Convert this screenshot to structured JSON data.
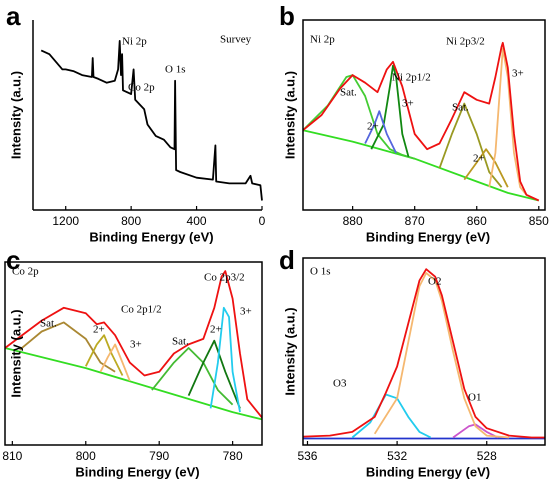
{
  "chart_data": [
    {
      "type": "line",
      "label": "a",
      "x_label": "Binding Energy (eV)",
      "y_label": "Intensity (a.u.)",
      "xlim": [
        1400,
        0
      ],
      "xticks": [
        1200,
        800,
        400,
        0
      ],
      "ylim": [
        0,
        100
      ],
      "annotations": [
        "Ni 2p",
        "Co 2p",
        "O 1s",
        "Survey"
      ],
      "series": [
        {
          "color": "#000000",
          "x": [
            1350,
            1300,
            1220,
            1200,
            1150,
            1100,
            1040,
            1035,
            1030,
            1000,
            950,
            900,
            880,
            870,
            862,
            855,
            850,
            800,
            785,
            775,
            720,
            700,
            650,
            600,
            560,
            535,
            531,
            525,
            500,
            400,
            300,
            285,
            280,
            200,
            100,
            70,
            60,
            10,
            0
          ],
          "values": [
            84,
            82,
            74,
            74,
            73,
            71,
            70,
            80,
            70,
            69,
            67,
            68,
            74,
            89,
            71,
            82,
            63,
            61,
            74,
            58,
            53,
            45,
            39,
            37,
            33,
            32,
            68,
            21,
            20,
            17,
            16,
            34,
            15,
            14,
            14,
            18,
            14,
            13,
            5
          ]
        }
      ]
    },
    {
      "type": "line",
      "label": "b",
      "x_label": "Binding Energy (eV)",
      "y_label": "Intensity (a.u.)",
      "xlim": [
        888,
        849
      ],
      "xticks": [
        880,
        870,
        860,
        850
      ],
      "ylim": [
        0,
        100
      ],
      "annotations": [
        "Ni 2p",
        "Sat.",
        "Ni 2p1/2",
        "3+",
        "2+",
        "Sat.",
        "Ni 2p3/2",
        "3+",
        "2+"
      ],
      "series": [
        {
          "color": "#33dd22",
          "x": [
            888,
            880,
            870,
            860,
            855,
            850
          ],
          "values": [
            42,
            36,
            27,
            15,
            9,
            5
          ]
        },
        {
          "color": "#44cc33",
          "x": [
            888,
            884,
            881,
            880,
            878,
            876,
            874,
            872,
            870
          ],
          "values": [
            42,
            55,
            70,
            71,
            60,
            40,
            32,
            29,
            27
          ]
        },
        {
          "color": "#118811",
          "x": [
            877,
            875,
            874,
            873.5,
            873,
            872,
            871
          ],
          "values": [
            32,
            45,
            65,
            76,
            70,
            40,
            28
          ]
        },
        {
          "color": "#5566dd",
          "x": [
            878,
            876.5,
            875.7,
            874.5,
            873
          ],
          "values": [
            35,
            45,
            52,
            40,
            30
          ]
        },
        {
          "color": "#999922",
          "x": [
            866,
            864,
            862,
            860,
            858,
            856
          ],
          "values": [
            22,
            40,
            56,
            40,
            20,
            12
          ]
        },
        {
          "color": "#bb9922",
          "x": [
            862,
            860,
            858.5,
            857,
            855
          ],
          "values": [
            16,
            25,
            32,
            25,
            12
          ]
        },
        {
          "color": "#f5b870",
          "x": [
            858,
            857,
            856,
            855.8,
            855,
            854,
            853,
            852
          ],
          "values": [
            12,
            30,
            76,
            85,
            70,
            30,
            12,
            8
          ]
        },
        {
          "color": "#ee1111",
          "x": [
            888,
            885,
            882,
            880,
            878,
            876,
            874.5,
            873.5,
            872,
            870,
            868,
            866,
            864,
            862,
            860,
            858,
            857,
            856,
            855.8,
            855,
            854,
            853,
            852,
            850
          ],
          "values": [
            42,
            50,
            64,
            71,
            67,
            62,
            74,
            78,
            65,
            40,
            32,
            35,
            48,
            62,
            58,
            56,
            70,
            86,
            88,
            75,
            40,
            15,
            8,
            5
          ]
        }
      ]
    },
    {
      "type": "line",
      "label": "c",
      "x_label": "Binding Energy (eV)",
      "y_label": "Intensity (a.u.)",
      "xlim": [
        811,
        776
      ],
      "xticks": [
        810,
        800,
        790,
        780
      ],
      "ylim": [
        0,
        100
      ],
      "annotations": [
        "Co 2p",
        "Sat.",
        "2+",
        "Co 2p1/2",
        "3+",
        "Co 2p3/2",
        "Sat.",
        "2+",
        "3+"
      ],
      "series": [
        {
          "color": "#33dd22",
          "x": [
            811,
            800,
            790,
            780,
            776
          ],
          "values": [
            53,
            42,
            30,
            18,
            14
          ]
        },
        {
          "color": "#aa8833",
          "x": [
            809,
            806,
            803,
            800,
            798,
            796
          ],
          "values": [
            52,
            62,
            67,
            58,
            45,
            40
          ]
        },
        {
          "color": "#bbaa22",
          "x": [
            800,
            798.5,
            797.5,
            796.5,
            795
          ],
          "values": [
            43,
            55,
            60,
            50,
            38
          ]
        },
        {
          "color": "#f5b870",
          "x": [
            798,
            797,
            796,
            795,
            794
          ],
          "values": [
            40,
            48,
            55,
            45,
            35
          ]
        },
        {
          "color": "#44bb33",
          "x": [
            791,
            788,
            786,
            784,
            782,
            780
          ],
          "values": [
            30,
            45,
            53,
            45,
            30,
            22
          ]
        },
        {
          "color": "#117711",
          "x": [
            786,
            784,
            782.5,
            781,
            779
          ],
          "values": [
            27,
            45,
            57,
            40,
            20
          ]
        },
        {
          "color": "#22ccee",
          "x": [
            783,
            782,
            781.2,
            780.5,
            780,
            779
          ],
          "values": [
            20,
            45,
            75,
            70,
            40,
            18
          ]
        },
        {
          "color": "#ee1111",
          "x": [
            811,
            806,
            803,
            800,
            798.5,
            797.5,
            796,
            794,
            792,
            790,
            788,
            786,
            784,
            782.5,
            781.5,
            781,
            780,
            779,
            778,
            776
          ],
          "values": [
            53,
            68,
            75,
            72,
            66,
            67,
            60,
            45,
            38,
            40,
            50,
            55,
            58,
            75,
            92,
            95,
            80,
            50,
            25,
            15
          ]
        }
      ]
    },
    {
      "type": "line",
      "label": "d",
      "x_label": "Binding Energy (eV)",
      "y_label": "Intensity (a.u.)",
      "xlim": [
        536.2,
        525.4
      ],
      "xticks": [
        536,
        532,
        528
      ],
      "ylim": [
        0,
        100
      ],
      "annotations": [
        "O 1s",
        "O2",
        "O3",
        "O1"
      ],
      "series": [
        {
          "color": "#2233cc",
          "x": [
            536.2,
            525.4
          ],
          "values": [
            3.5,
            3.5
          ]
        },
        {
          "color": "#22ccee",
          "x": [
            534,
            533.2,
            532.5,
            532,
            531.5,
            531,
            530.5
          ],
          "values": [
            4,
            12,
            27,
            25,
            15,
            7,
            4
          ]
        },
        {
          "color": "#cc55cc",
          "x": [
            529.5,
            528.8,
            528.5,
            528,
            527.5
          ],
          "values": [
            4,
            10,
            11,
            7,
            4
          ]
        },
        {
          "color": "#f5b870",
          "x": [
            533,
            532,
            531.5,
            531,
            530.7,
            530.3,
            530,
            529.5,
            529,
            528.5,
            528,
            527
          ],
          "values": [
            6,
            25,
            55,
            85,
            92,
            88,
            77,
            50,
            25,
            10,
            5,
            4
          ]
        },
        {
          "color": "#ee1111",
          "x": [
            536.2,
            535,
            534,
            533,
            532.5,
            532,
            531.5,
            531,
            530.7,
            530.3,
            530,
            529.5,
            529,
            528.5,
            528,
            527,
            526,
            525.4
          ],
          "values": [
            4.5,
            5,
            7,
            15,
            28,
            42,
            65,
            88,
            94,
            90,
            80,
            55,
            30,
            15,
            9,
            5,
            4,
            4
          ]
        }
      ]
    }
  ]
}
